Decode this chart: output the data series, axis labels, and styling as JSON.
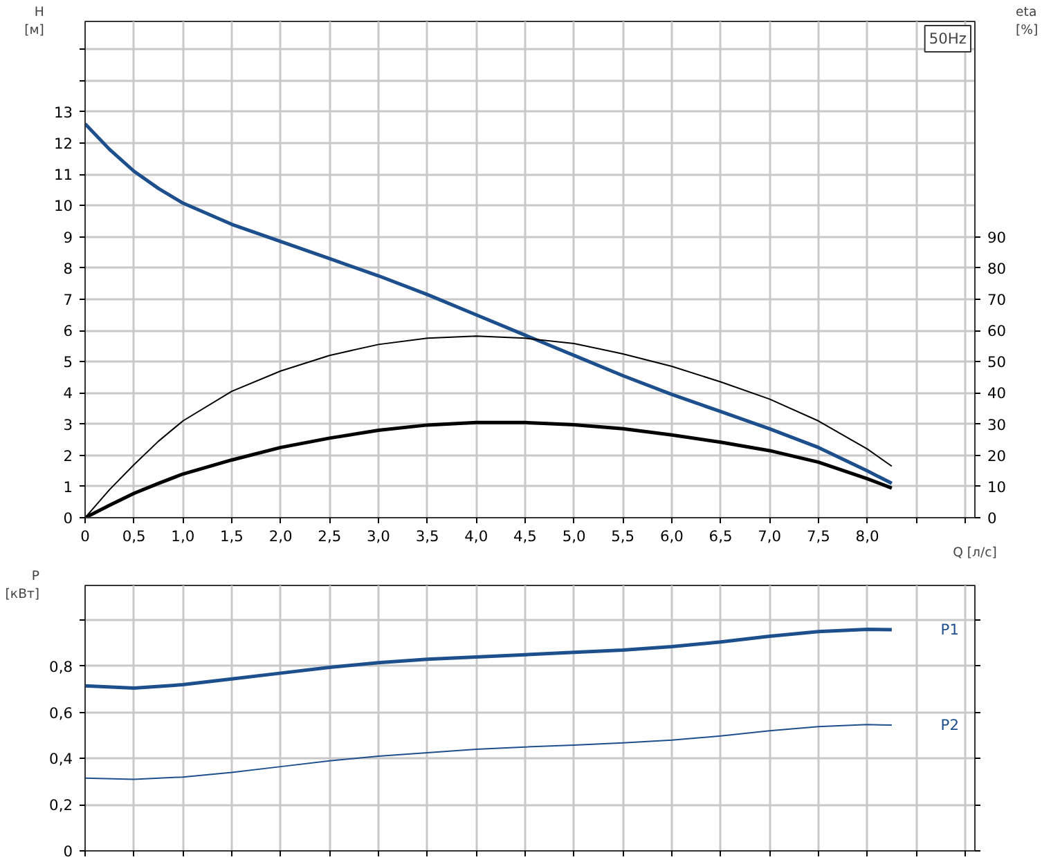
{
  "chart_data": [
    {
      "type": "line",
      "title": "50Hz",
      "xlabel": "Q [л/с]",
      "ylabel": "H\n[м]",
      "y2label": "eta\n[%]",
      "x": [
        0,
        0.25,
        0.5,
        0.75,
        1.0,
        1.5,
        2.0,
        2.5,
        3.0,
        3.5,
        4.0,
        4.5,
        5.0,
        5.5,
        6.0,
        6.5,
        7.0,
        7.5,
        8.0,
        8.25
      ],
      "series": [
        {
          "color": "#1d4f8c",
          "values": [
            12.62,
            11.8,
            11.1,
            10.55,
            10.08,
            9.4,
            8.85,
            8.3,
            7.75,
            7.15,
            6.5,
            5.85,
            5.2,
            4.55,
            3.95,
            3.4,
            2.85,
            2.25,
            1.5,
            1.1
          ]
        },
        {
          "color": "#000000",
          "axis": "y2",
          "values": [
            0,
            9,
            17,
            24.5,
            31,
            40.5,
            47,
            52,
            55.5,
            57.5,
            58.2,
            57.5,
            55.8,
            52.5,
            48.5,
            43.5,
            38,
            31,
            22,
            16.5
          ]
        },
        {
          "color": "#000000",
          "axis": "y2",
          "values": [
            0,
            4,
            7.8,
            11,
            14,
            18.5,
            22.5,
            25.5,
            28,
            29.7,
            30.5,
            30.5,
            29.8,
            28.5,
            26.5,
            24.2,
            21.5,
            17.8,
            12.5,
            9.5
          ]
        }
      ],
      "xlim": [
        0,
        9.1
      ],
      "xticks": [
        0,
        {
          "value": 0.5,
          "label": "0,5"
        },
        {
          "value": 1.0,
          "label": "1,0"
        },
        {
          "value": 1.5,
          "label": "1,5"
        },
        {
          "value": 2.0,
          "label": "2,0"
        },
        {
          "value": 2.5,
          "label": "2,5"
        },
        {
          "value": 3.0,
          "label": "3,0"
        },
        {
          "value": 3.5,
          "label": "3,5"
        },
        {
          "value": 4.0,
          "label": "4,0"
        },
        {
          "value": 4.5,
          "label": "4,5"
        },
        {
          "value": 5.0,
          "label": "5,0"
        },
        {
          "value": 5.5,
          "label": "5,5"
        },
        {
          "value": 6.0,
          "label": "6,0"
        },
        {
          "value": 6.5,
          "label": "6,5"
        },
        {
          "value": 7.0,
          "label": "7,0"
        },
        {
          "value": 7.5,
          "label": "7,5"
        },
        {
          "value": 8.0,
          "label": "8,0"
        },
        {
          "value": 8.5,
          "label": null
        },
        {
          "value": 9.0,
          "label": null
        }
      ],
      "ylim": [
        0,
        15.9
      ],
      "yticks": [
        0,
        1,
        2,
        3,
        4,
        5,
        6,
        7,
        8,
        9,
        10,
        11,
        12,
        13,
        {
          "value": 14,
          "label": null
        },
        {
          "value": 15,
          "label": null
        }
      ],
      "y2lim": [
        0,
        159
      ],
      "y2ticks": [
        0,
        10,
        20,
        30,
        40,
        50,
        60,
        70,
        80,
        90
      ],
      "grid": true,
      "line_style": "solid"
    },
    {
      "type": "line",
      "ylabel": "P\n[кВт]",
      "x": [
        0,
        0.5,
        1.0,
        1.5,
        2.0,
        2.5,
        3.0,
        3.5,
        4.0,
        4.5,
        5.0,
        5.5,
        6.0,
        6.5,
        7.0,
        7.5,
        8.0,
        8.25
      ],
      "xticks": [
        0,
        0.5,
        1.0,
        1.5,
        2.0,
        2.5,
        3.0,
        3.5,
        4.0,
        4.5,
        5.0,
        5.5,
        6.0,
        6.5,
        7.0,
        7.5,
        8.0,
        8.5,
        9.0
      ],
      "series": [
        {
          "name": "P1",
          "color": "#1d4f8c",
          "values": [
            0.715,
            0.705,
            0.72,
            0.745,
            0.77,
            0.795,
            0.815,
            0.83,
            0.84,
            0.85,
            0.86,
            0.87,
            0.885,
            0.905,
            0.93,
            0.95,
            0.96,
            0.958
          ]
        },
        {
          "name": "P2",
          "color": "#1d4f8c",
          "values": [
            0.315,
            0.31,
            0.32,
            0.34,
            0.365,
            0.39,
            0.41,
            0.425,
            0.44,
            0.45,
            0.458,
            0.468,
            0.48,
            0.498,
            0.52,
            0.538,
            0.547,
            0.545
          ]
        }
      ],
      "xlim": [
        0,
        9.1
      ],
      "ylim": [
        0,
        1.15
      ],
      "yticks": [
        0,
        {
          "value": 0.2,
          "label": "0,2"
        },
        {
          "value": 0.4,
          "label": "0,4"
        },
        {
          "value": 0.6,
          "label": "0,6"
        },
        {
          "value": 0.8,
          "label": "0,8"
        },
        {
          "value": 1.0,
          "label": null
        }
      ],
      "tick_labels": "y",
      "grid": true,
      "line_style": "solid"
    }
  ]
}
